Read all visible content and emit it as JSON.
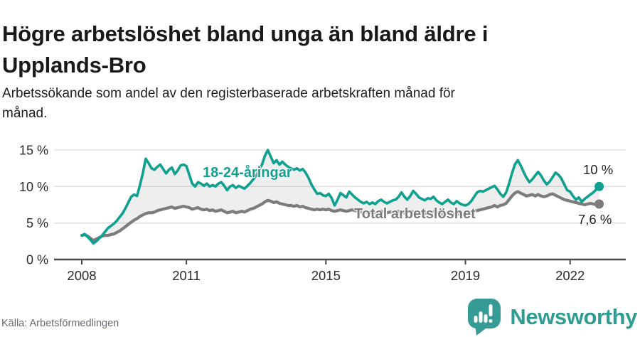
{
  "header": {
    "title_line1": "Högre arbetslöshet bland unga än bland äldre i",
    "title_line2": "Upplands-Bro",
    "subtitle_line1": "Arbetssökande som andel av den registerbaserade arbetskraften månad för",
    "subtitle_line2": "månad."
  },
  "chart_data": {
    "type": "line",
    "title": "Högre arbetslöshet bland unga än bland äldre i Upplands-Bro",
    "subtitle": "Arbetssökande som andel av den registerbaserade arbetskraften månad för månad.",
    "unit": "%",
    "frequency": "monthly",
    "x_start": 2008,
    "x_end_label": "2022 (november)",
    "ylim": [
      0,
      16.5
    ],
    "grid": "horizontal",
    "fill_between": true,
    "legend_position": "inline-labels",
    "x_ticks": [
      {
        "value": 2008,
        "label": "2008"
      },
      {
        "value": 2011,
        "label": "2011"
      },
      {
        "value": 2015,
        "label": "2015"
      },
      {
        "value": 2019,
        "label": "2019"
      },
      {
        "value": 2022,
        "label": "2022"
      }
    ],
    "y_ticks": [
      {
        "value": 15,
        "label": "15 %"
      },
      {
        "value": 10,
        "label": "10 %"
      },
      {
        "value": 5,
        "label": "5 %"
      },
      {
        "value": 0,
        "label": "0 %"
      }
    ],
    "series": [
      {
        "name": "18-24-åringar",
        "color": "#10a08f",
        "end_label": "10 %",
        "end_value": 10.0,
        "values": [
          3.3,
          3.5,
          3.1,
          2.7,
          2.2,
          2.5,
          2.9,
          3.3,
          3.8,
          4.3,
          4.6,
          4.9,
          5.3,
          5.8,
          6.3,
          7.0,
          7.8,
          8.6,
          8.9,
          8.7,
          10.2,
          11.8,
          13.8,
          13.2,
          12.5,
          12.3,
          12.7,
          13.0,
          12.4,
          11.8,
          12.3,
          12.6,
          11.7,
          12.2,
          12.9,
          13.0,
          12.8,
          11.6,
          10.4,
          10.0,
          10.6,
          10.4,
          10.1,
          10.4,
          10.0,
          10.2,
          10.0,
          10.4,
          10.6,
          10.1,
          9.5,
          10.0,
          10.2,
          9.8,
          10.1,
          9.9,
          9.7,
          10.1,
          10.5,
          11.0,
          11.5,
          12.3,
          13.0,
          14.2,
          15.0,
          14.1,
          13.2,
          13.6,
          13.0,
          13.4,
          13.0,
          12.7,
          12.5,
          12.3,
          12.5,
          12.2,
          12.4,
          11.9,
          11.2,
          10.3,
          9.6,
          9.0,
          9.1,
          8.8,
          8.7,
          9.0,
          8.4,
          7.4,
          8.2,
          9.1,
          8.8,
          8.5,
          9.3,
          8.9,
          8.5,
          8.2,
          7.9,
          7.7,
          7.9,
          7.6,
          7.8,
          7.6,
          8.0,
          8.2,
          7.9,
          7.7,
          7.9,
          8.1,
          8.2,
          8.6,
          9.2,
          8.6,
          8.2,
          8.7,
          9.4,
          9.0,
          8.5,
          8.3,
          8.1,
          8.4,
          8.3,
          8.6,
          8.1,
          7.8,
          7.6,
          7.9,
          8.2,
          7.8,
          7.6,
          8.0,
          7.7,
          7.5,
          7.4,
          7.6,
          8.0,
          8.6,
          9.2,
          9.4,
          9.3,
          9.5,
          9.7,
          9.9,
          10.1,
          9.6,
          9.0,
          8.6,
          9.2,
          10.4,
          11.8,
          13.0,
          13.6,
          12.9,
          12.0,
          11.2,
          10.6,
          11.0,
          11.5,
          12.0,
          11.5,
          10.8,
          10.3,
          10.7,
          11.3,
          11.9,
          11.6,
          11.1,
          10.3,
          9.5,
          9.3,
          8.7,
          8.2,
          8.5,
          7.9,
          8.3,
          8.6,
          8.9,
          9.2,
          9.6,
          10.0
        ]
      },
      {
        "name": "Total arbetslöshet",
        "color": "#7c7c7c",
        "end_label": "7,6 %",
        "end_value": 7.6,
        "values": [
          3.3,
          3.4,
          3.2,
          2.9,
          2.6,
          2.8,
          3.0,
          3.2,
          3.3,
          3.3,
          3.4,
          3.5,
          3.7,
          3.9,
          4.2,
          4.5,
          4.8,
          5.1,
          5.4,
          5.6,
          5.9,
          6.1,
          6.3,
          6.4,
          6.4,
          6.5,
          6.7,
          6.8,
          6.9,
          7.0,
          7.1,
          7.2,
          7.0,
          7.1,
          7.2,
          7.3,
          7.2,
          7.1,
          6.9,
          7.0,
          7.1,
          6.9,
          6.8,
          6.9,
          6.7,
          6.8,
          6.6,
          6.7,
          6.8,
          6.6,
          6.4,
          6.5,
          6.6,
          6.4,
          6.5,
          6.6,
          6.5,
          6.7,
          6.9,
          7.0,
          7.2,
          7.4,
          7.6,
          7.9,
          8.1,
          8.0,
          7.8,
          7.9,
          7.7,
          7.6,
          7.5,
          7.4,
          7.4,
          7.3,
          7.4,
          7.2,
          7.3,
          7.1,
          7.0,
          6.9,
          6.8,
          6.9,
          6.8,
          6.9,
          6.8,
          6.9,
          6.7,
          6.6,
          6.7,
          6.8,
          6.7,
          6.6,
          6.7,
          6.8,
          6.7,
          6.6,
          6.5,
          6.6,
          6.5,
          6.4,
          6.5,
          6.4,
          6.5,
          6.6,
          6.5,
          6.4,
          6.5,
          6.5,
          6.5,
          6.6,
          6.5,
          6.4,
          6.5,
          6.6,
          6.5,
          6.4,
          6.3,
          6.4,
          6.3,
          6.4,
          6.4,
          6.5,
          6.4,
          6.3,
          6.2,
          6.3,
          6.4,
          6.3,
          6.2,
          6.3,
          6.2,
          6.3,
          6.3,
          6.4,
          6.5,
          6.6,
          6.7,
          6.8,
          6.9,
          7.0,
          7.1,
          7.2,
          7.4,
          7.2,
          7.4,
          7.5,
          7.7,
          8.2,
          8.7,
          9.1,
          9.3,
          9.1,
          8.9,
          8.7,
          8.8,
          8.9,
          8.7,
          8.9,
          8.7,
          8.6,
          8.7,
          8.9,
          9.0,
          8.8,
          8.6,
          8.4,
          8.2,
          8.1,
          8.0,
          7.9,
          7.8,
          7.7,
          7.6,
          7.5,
          7.6,
          7.7,
          7.6,
          7.5,
          7.6
        ]
      }
    ]
  },
  "footer": {
    "source": "Källa: Arbetsförmedlingen",
    "brand": "Newsworthy"
  },
  "colors": {
    "youth_line": "#10a08f",
    "total_line": "#7c7c7c",
    "fill_between": "rgba(125,125,125,0.13)",
    "gridline": "#dcdcdc",
    "axis": "#4b4b4b",
    "logo_teal": "#359b94",
    "wordmark_teal": "#2f9c94"
  }
}
